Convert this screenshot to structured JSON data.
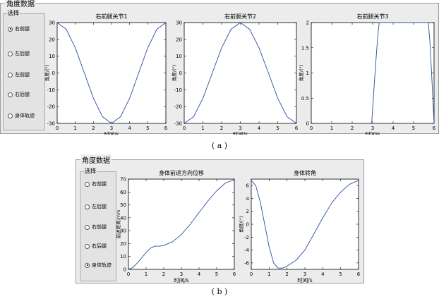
{
  "colors": {
    "panel_bg": "#ececec",
    "curve": "#2b4f9e",
    "axes": "#000000"
  },
  "top_panel": {
    "title": "角度数据",
    "group_title": "选择",
    "options": [
      {
        "label": "右前腿",
        "selected": true
      },
      {
        "label": "左后腿",
        "selected": false
      },
      {
        "label": "左前腿",
        "selected": false
      },
      {
        "label": "右后腿",
        "selected": false
      },
      {
        "label": "身体轨迹",
        "selected": false
      }
    ]
  },
  "bottom_panel": {
    "title": "角度数据",
    "group_title": "选择",
    "options": [
      {
        "label": "右前腿",
        "selected": false
      },
      {
        "label": "左后腿",
        "selected": false
      },
      {
        "label": "右前腿",
        "selected": false
      },
      {
        "label": "右后腿",
        "selected": false
      },
      {
        "label": "身体轨迹",
        "selected": true
      }
    ]
  },
  "captions": {
    "a": "( a )",
    "b": "( b )"
  },
  "chart_data": [
    {
      "type": "line",
      "title": "右前腿关节1",
      "xlabel": "时间/s",
      "ylabel": "角度/(°)",
      "xlim": [
        0,
        6
      ],
      "ylim": [
        -30,
        30
      ],
      "xticks": [
        0,
        1,
        2,
        3,
        4,
        5,
        6
      ],
      "yticks": [
        -30,
        -20,
        -10,
        0,
        10,
        20,
        30
      ],
      "series": [
        {
          "x": [
            0,
            0.5,
            1,
            1.5,
            2,
            2.5,
            3,
            3.5,
            4,
            4.5,
            5,
            5.5,
            6
          ],
          "values": [
            30,
            26,
            15,
            0,
            -15,
            -26,
            -30,
            -26,
            -15,
            0,
            15,
            26,
            30
          ]
        }
      ]
    },
    {
      "type": "line",
      "title": "右前腿关节2",
      "xlabel": "时间/s",
      "ylabel": "角度/(°)",
      "xlim": [
        0,
        6
      ],
      "ylim": [
        -30,
        30
      ],
      "xticks": [
        0,
        1,
        2,
        3,
        4,
        5,
        6
      ],
      "yticks": [
        -30,
        -20,
        -10,
        0,
        10,
        20,
        30
      ],
      "series": [
        {
          "x": [
            0,
            0.5,
            1,
            1.5,
            2,
            2.5,
            3,
            3.5,
            4,
            4.5,
            5,
            5.5,
            6
          ],
          "values": [
            -30,
            -26,
            -15,
            0,
            15,
            26,
            30,
            26,
            15,
            0,
            -15,
            -26,
            -30
          ]
        }
      ]
    },
    {
      "type": "line",
      "title": "右前腿关节3",
      "xlabel": "时间/s",
      "ylabel": "角度/(°)",
      "xlim": [
        0,
        6
      ],
      "ylim": [
        0,
        2
      ],
      "xticks": [
        0,
        1,
        2,
        3,
        4,
        5,
        6
      ],
      "yticks": [
        0,
        0.5,
        1,
        1.5,
        2
      ],
      "series": [
        {
          "x": [
            2.95,
            3.05,
            3.15,
            3.25,
            3.32,
            5.72,
            5.8,
            5.88,
            5.95,
            6
          ],
          "values": [
            0,
            0.6,
            1.2,
            1.75,
            2.0,
            2.0,
            1.6,
            1.0,
            0.4,
            0
          ]
        }
      ]
    },
    {
      "type": "line",
      "title": "身体前进方向位移",
      "xlabel": "时间/s",
      "ylabel": "前进距离/mm",
      "xlim": [
        0,
        6
      ],
      "ylim": [
        0,
        70
      ],
      "xticks": [
        0,
        1,
        2,
        3,
        4,
        5,
        6
      ],
      "yticks": [
        0,
        10,
        20,
        30,
        40,
        50,
        60,
        70
      ],
      "series": [
        {
          "x": [
            0,
            0.25,
            0.5,
            0.75,
            1,
            1.25,
            1.5,
            1.75,
            2,
            2.5,
            3,
            3.5,
            4,
            4.5,
            5,
            5.5,
            6
          ],
          "values": [
            0,
            1.5,
            5,
            9,
            13,
            16.5,
            18,
            18,
            18.5,
            21.5,
            27,
            35,
            44,
            53,
            61,
            67,
            69.5
          ]
        }
      ]
    },
    {
      "type": "line",
      "title": "身体转角",
      "xlabel": "时间/s",
      "ylabel": "角度/(°)",
      "xlim": [
        0,
        6
      ],
      "ylim": [
        -7,
        7
      ],
      "xticks": [
        0,
        1,
        2,
        3,
        4,
        5,
        6
      ],
      "yticks": [
        -6,
        -4,
        -2,
        0,
        2,
        4,
        6
      ],
      "series": [
        {
          "x": [
            0,
            0.25,
            0.5,
            0.75,
            1,
            1.25,
            1.5,
            1.75,
            2,
            2.5,
            3,
            3.5,
            4,
            4.5,
            5,
            5.5,
            6
          ],
          "values": [
            6.8,
            6,
            3.5,
            0,
            -3.5,
            -6,
            -6.8,
            -6.8,
            -6.5,
            -5.6,
            -4,
            -1.5,
            1,
            3.3,
            5,
            6.2,
            6.8
          ]
        }
      ]
    }
  ]
}
